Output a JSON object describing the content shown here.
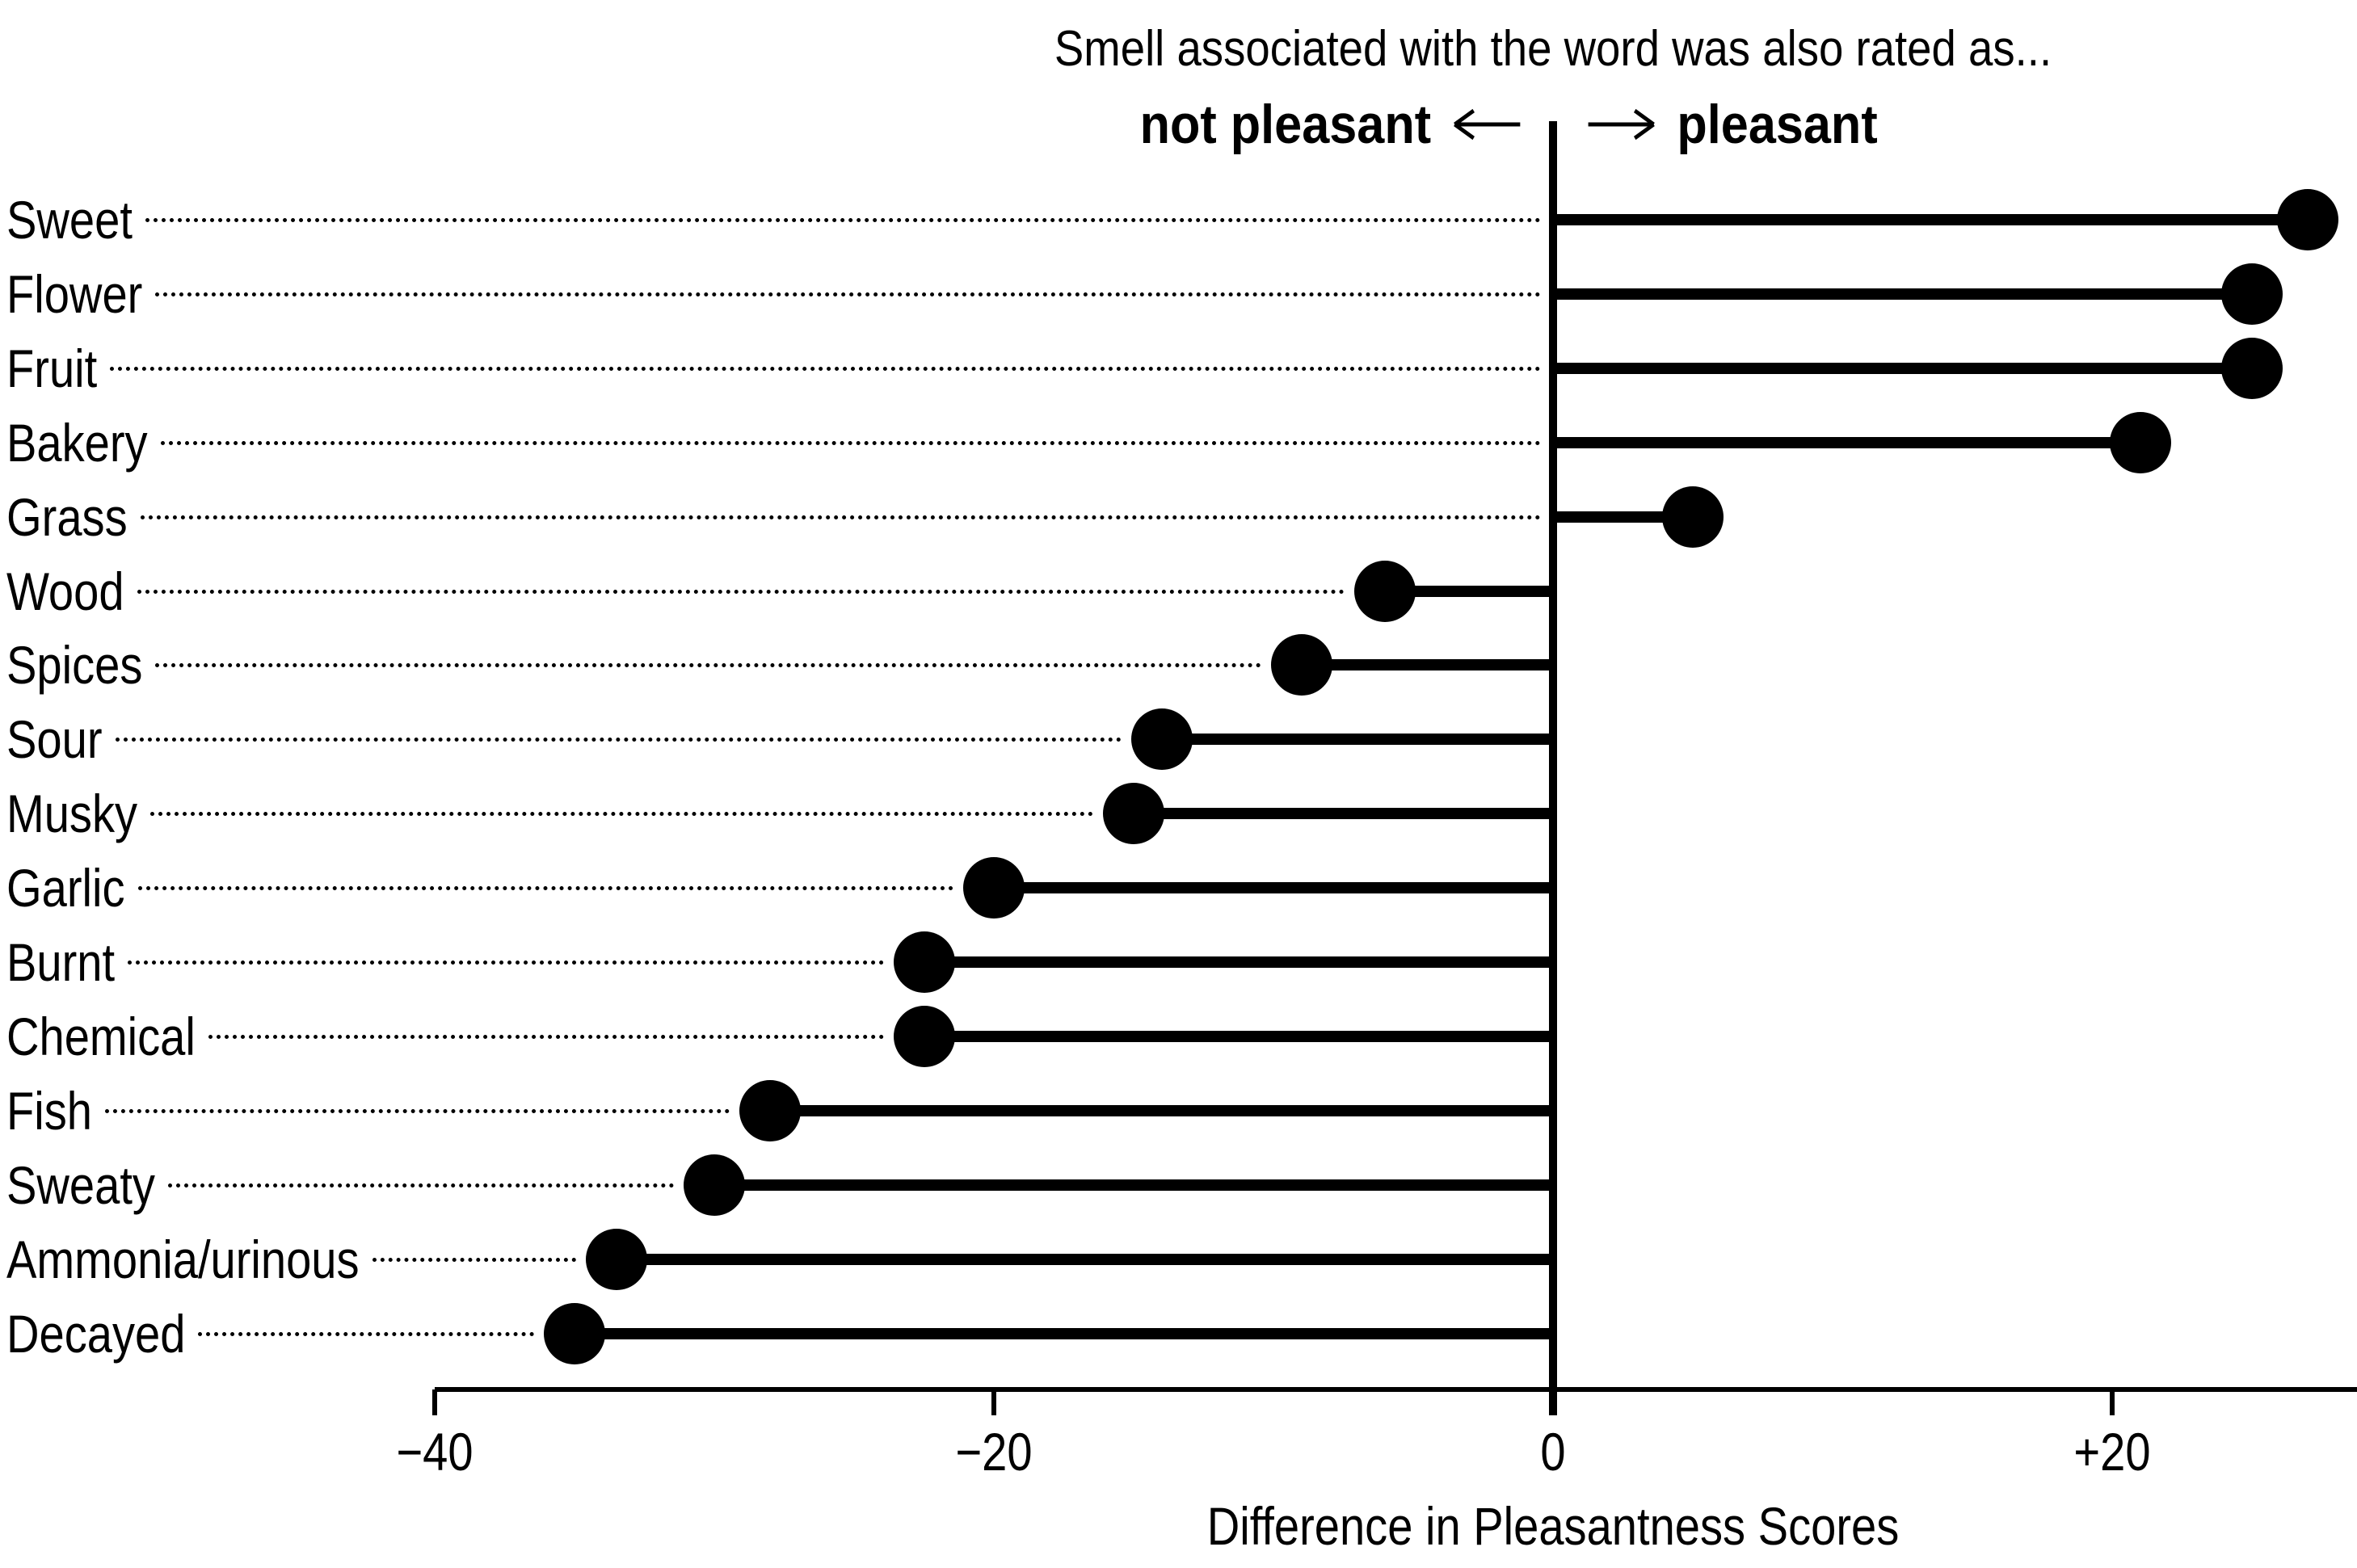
{
  "page": {
    "background": "#ffffff",
    "ink_color": "#000000"
  },
  "header": {
    "title": "Smell associated with the word was also rated as...",
    "axis_annotation": {
      "left_label": "not pleasant",
      "left_arrow_icon": "long-left-arrow",
      "right_arrow_icon": "long-right-arrow",
      "right_label": "pleasant"
    }
  },
  "chart_data": {
    "type": "bar",
    "variant": "lollipop",
    "orientation": "horizontal",
    "title": "Smell associated with the word was also rated as...",
    "xlabel": "Difference in Pleasantness Scores",
    "categories": [
      "Sweet",
      "Flower",
      "Fruit",
      "Bakery",
      "Grass",
      "Wood",
      "Spices",
      "Sour",
      "Musky",
      "Garlic",
      "Burnt",
      "Chemical",
      "Fish",
      "Sweaty",
      "Ammonia/urinous",
      "Decayed"
    ],
    "values": [
      27,
      25,
      25,
      21,
      5,
      -6,
      -9,
      -14,
      -15,
      -20,
      -22.5,
      -22.5,
      -28,
      -30,
      -33.5,
      -35
    ],
    "xlim": [
      -40,
      28.5
    ],
    "xticks": [
      {
        "value": -40,
        "label": "−40"
      },
      {
        "value": -20,
        "label": "−20"
      },
      {
        "value": 0,
        "label": "0"
      },
      {
        "value": 20,
        "label": "+20"
      }
    ],
    "zero_baseline": true,
    "grid": false,
    "legend": false,
    "marker_color": "#000000",
    "leader_style": "dotted",
    "negative_direction_label": "not pleasant",
    "positive_direction_label": "pleasant"
  }
}
